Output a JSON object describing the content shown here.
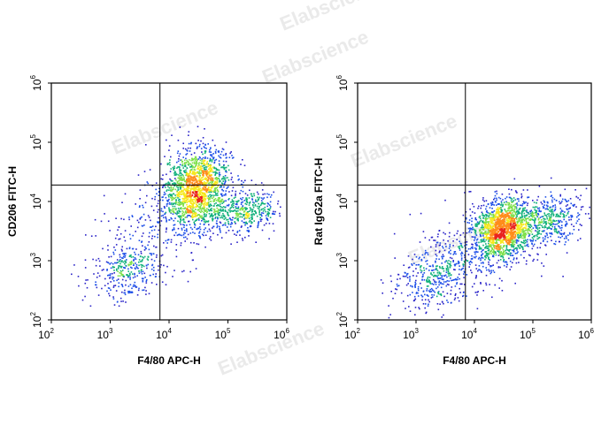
{
  "watermark": "Elabscience",
  "chart_data": [
    {
      "type": "scatter",
      "subtype": "flow-cytometry density dot plot",
      "xlabel": "F4/80 APC-H",
      "ylabel": "CD206 FITC-H",
      "x_scale": "log",
      "y_scale": "log",
      "xlim": [
        100,
        1000000
      ],
      "ylim": [
        100,
        1000000
      ],
      "x_ticks": [
        {
          "base": "10",
          "exp": "2"
        },
        {
          "base": "10",
          "exp": "3"
        },
        {
          "base": "10",
          "exp": "4"
        },
        {
          "base": "10",
          "exp": "5"
        },
        {
          "base": "10",
          "exp": "6"
        }
      ],
      "y_ticks": [
        {
          "base": "10",
          "exp": "2"
        },
        {
          "base": "10",
          "exp": "3"
        },
        {
          "base": "10",
          "exp": "4"
        },
        {
          "base": "10",
          "exp": "5"
        },
        {
          "base": "10",
          "exp": "6"
        }
      ],
      "gate": {
        "x": 7000,
        "y": 19000
      },
      "populations": [
        {
          "x": 30000,
          "y": 17000,
          "spread_x": 0.28,
          "spread_y": 0.33,
          "weight": 0.62
        },
        {
          "x": 200000,
          "y": 7000,
          "spread_x": 0.28,
          "spread_y": 0.18,
          "weight": 0.15
        },
        {
          "x": 2000,
          "y": 700,
          "spread_x": 0.32,
          "spread_y": 0.25,
          "weight": 0.13
        },
        {
          "x": 8000,
          "y": 5000,
          "spread_x": 0.55,
          "spread_y": 0.4,
          "weight": 0.1
        }
      ],
      "grid": false,
      "legend": "none"
    },
    {
      "type": "scatter",
      "subtype": "flow-cytometry density dot plot",
      "xlabel": "F4/80 APC-H",
      "ylabel": "Rat IgG2a FITC-H",
      "x_scale": "log",
      "y_scale": "log",
      "xlim": [
        100,
        1000000
      ],
      "ylim": [
        100,
        1000000
      ],
      "x_ticks": [
        {
          "base": "10",
          "exp": "2"
        },
        {
          "base": "10",
          "exp": "3"
        },
        {
          "base": "10",
          "exp": "4"
        },
        {
          "base": "10",
          "exp": "5"
        },
        {
          "base": "10",
          "exp": "6"
        }
      ],
      "y_ticks": [
        {
          "base": "10",
          "exp": "2"
        },
        {
          "base": "10",
          "exp": "3"
        },
        {
          "base": "10",
          "exp": "4"
        },
        {
          "base": "10",
          "exp": "5"
        },
        {
          "base": "10",
          "exp": "6"
        }
      ],
      "gate": {
        "x": 7000,
        "y": 19000
      },
      "populations": [
        {
          "x": 30000,
          "y": 3500,
          "spread_x": 0.25,
          "spread_y": 0.25,
          "weight": 0.58
        },
        {
          "x": 200000,
          "y": 5000,
          "spread_x": 0.3,
          "spread_y": 0.22,
          "weight": 0.17
        },
        {
          "x": 2000,
          "y": 500,
          "spread_x": 0.35,
          "spread_y": 0.28,
          "weight": 0.13
        },
        {
          "x": 8000,
          "y": 1500,
          "spread_x": 0.5,
          "spread_y": 0.35,
          "weight": 0.12
        }
      ],
      "grid": false,
      "legend": "none"
    }
  ]
}
